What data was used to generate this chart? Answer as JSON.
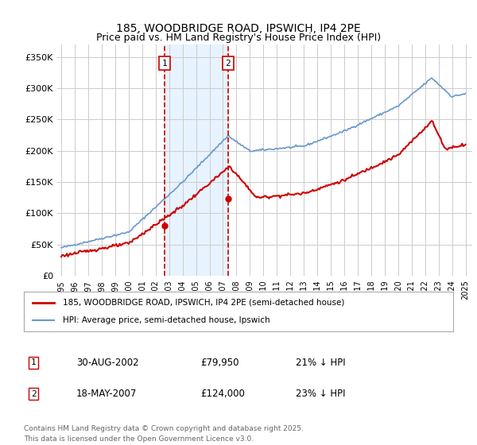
{
  "title1": "185, WOODBRIDGE ROAD, IPSWICH, IP4 2PE",
  "title2": "Price paid vs. HM Land Registry's House Price Index (HPI)",
  "ylabel_ticks": [
    "£0",
    "£50K",
    "£100K",
    "£150K",
    "£200K",
    "£250K",
    "£300K",
    "£350K"
  ],
  "ytick_vals": [
    0,
    50000,
    100000,
    150000,
    200000,
    250000,
    300000,
    350000
  ],
  "ylim": [
    0,
    370000
  ],
  "xlim_start": 1995.0,
  "xlim_end": 2025.5,
  "legend_line1": "185, WOODBRIDGE ROAD, IPSWICH, IP4 2PE (semi-detached house)",
  "legend_line2": "HPI: Average price, semi-detached house, Ipswich",
  "sale1_date": "30-AUG-2002",
  "sale1_price": "£79,950",
  "sale1_hpi": "21% ↓ HPI",
  "sale1_label": "1",
  "sale2_date": "18-MAY-2007",
  "sale2_price": "£124,000",
  "sale2_hpi": "23% ↓ HPI",
  "sale2_label": "2",
  "footnote": "Contains HM Land Registry data © Crown copyright and database right 2025.\nThis data is licensed under the Open Government Licence v3.0.",
  "sale1_year": 2002.66,
  "sale2_year": 2007.38,
  "red_color": "#cc0000",
  "blue_color": "#6699cc",
  "bg_color": "#ffffff",
  "grid_color": "#cccccc",
  "shade_color": "#ddeeff"
}
